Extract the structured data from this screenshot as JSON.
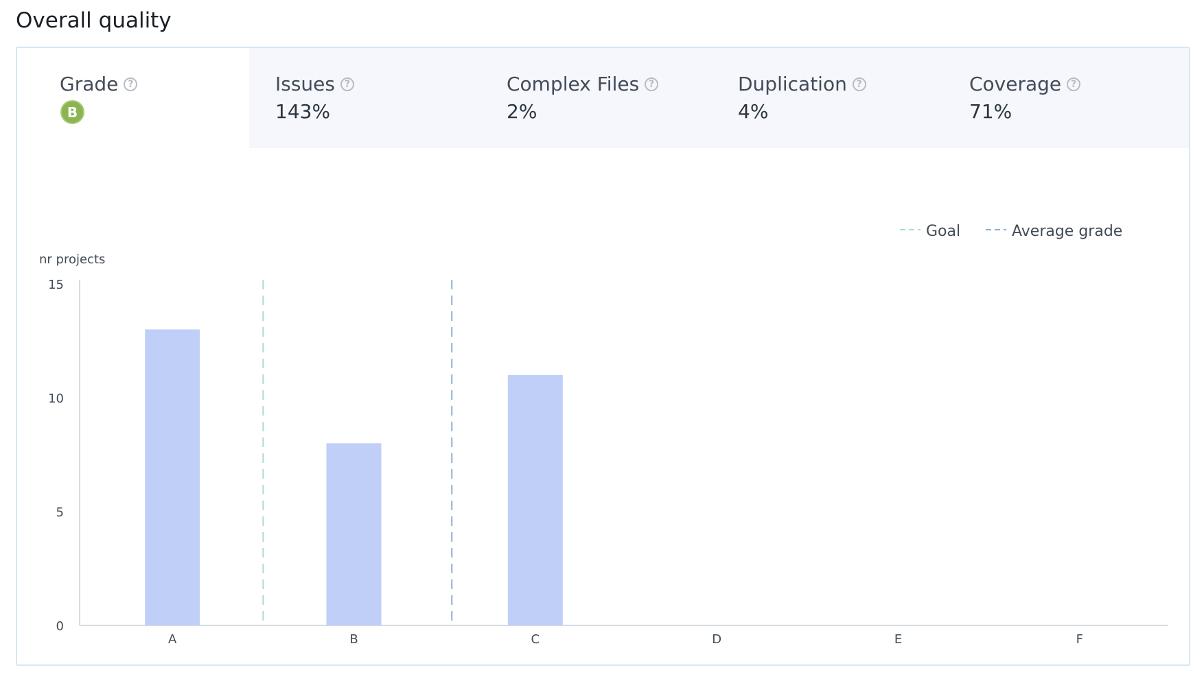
{
  "title": "Overall quality",
  "tabs": [
    {
      "label": "Grade",
      "value": "B",
      "active": true
    },
    {
      "label": "Issues",
      "value": "143%"
    },
    {
      "label": "Complex Files",
      "value": "2%"
    },
    {
      "label": "Duplication",
      "value": "4%"
    },
    {
      "label": "Coverage",
      "value": "71%"
    }
  ],
  "colors": {
    "bar": "#bfcff8",
    "goal_line": "#a6dfcd",
    "average_line": "#8fb0d4",
    "grade_badge": "#8ab552"
  },
  "icons": {
    "help": "question-circle-icon"
  },
  "chart_data": {
    "type": "bar",
    "categories": [
      "A",
      "B",
      "C",
      "D",
      "E",
      "F"
    ],
    "values": [
      13,
      8,
      11,
      0,
      0,
      0
    ],
    "ylabel": "nr projects",
    "ylim": [
      0,
      15
    ],
    "yticks": [
      0,
      5,
      10,
      15
    ],
    "legend": [
      {
        "label": "Goal",
        "style": "dashed"
      },
      {
        "label": "Average grade",
        "style": "dashed"
      }
    ],
    "legend_position": "top-right",
    "reference_lines": [
      {
        "name": "Goal",
        "between": [
          "A",
          "B"
        ]
      },
      {
        "name": "Average grade",
        "between": [
          "B",
          "C"
        ]
      }
    ],
    "grid": false
  }
}
